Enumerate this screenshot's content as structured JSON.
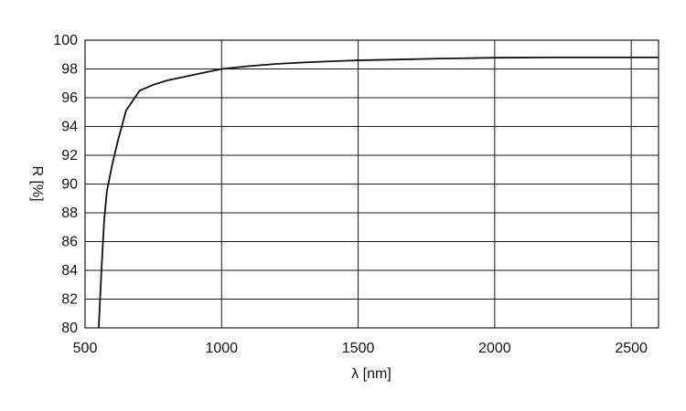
{
  "chart_data": {
    "type": "line",
    "xlabel": "λ [nm]",
    "ylabel": "R [%]",
    "xlim": [
      500,
      2600
    ],
    "ylim": [
      80,
      100
    ],
    "x_ticks": [
      500,
      1000,
      1500,
      2000,
      2500
    ],
    "y_ticks": [
      80,
      82,
      84,
      86,
      88,
      90,
      92,
      94,
      96,
      98,
      100
    ],
    "grid": true,
    "series": [
      {
        "x": [
          550,
          555,
          560,
          570,
          580,
          600,
          620,
          650,
          700,
          750,
          800,
          900,
          1000,
          1100,
          1200,
          1300,
          1400,
          1500,
          1600,
          1700,
          1800,
          1900,
          2000,
          2100,
          2200,
          2300,
          2400,
          2500,
          2600
        ],
        "y": [
          80.0,
          82.0,
          84.0,
          87.5,
          89.5,
          91.4,
          93.0,
          95.1,
          96.5,
          96.9,
          97.2,
          97.6,
          98.0,
          98.2,
          98.35,
          98.45,
          98.53,
          98.6,
          98.64,
          98.68,
          98.72,
          98.75,
          98.78,
          98.79,
          98.8,
          98.8,
          98.8,
          98.8,
          98.8
        ]
      }
    ]
  }
}
